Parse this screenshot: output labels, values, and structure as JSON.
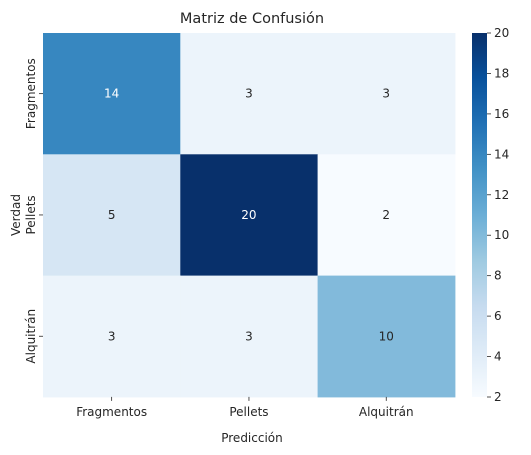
{
  "chart_data": {
    "type": "heatmap",
    "title": "Matriz de Confusión",
    "xlabel": "Predicción",
    "ylabel": "Verdad",
    "x_categories": [
      "Fragmentos",
      "Pellets",
      "Alquitrán"
    ],
    "y_categories": [
      "Fragmentos",
      "Pellets",
      "Alquitrán"
    ],
    "values": [
      [
        14,
        3,
        3
      ],
      [
        5,
        20,
        2
      ],
      [
        3,
        3,
        10
      ]
    ],
    "colormap": "Blues",
    "colorbar": {
      "range": [
        2,
        20
      ],
      "ticks": [
        2,
        4,
        6,
        8,
        10,
        12,
        14,
        16,
        18,
        20
      ]
    },
    "colors": {
      "low": "#f7fbff",
      "high": "#08306b",
      "text_dark": "#262626",
      "text_light": "#ffffff"
    }
  }
}
